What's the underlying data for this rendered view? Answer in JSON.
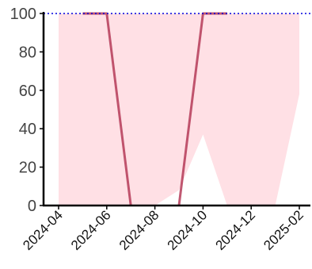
{
  "chart_data": {
    "type": "line",
    "title": "",
    "xlabel": "",
    "ylabel": "",
    "x": [
      "2024-04",
      "2024-05",
      "2024-06",
      "2024-07",
      "2024-08",
      "2024-09",
      "2024-10",
      "2024-11",
      "2024-12",
      "2025-01",
      "2025-02"
    ],
    "series": [
      {
        "values": [
          null,
          100,
          100,
          0,
          null,
          0,
          100,
          100,
          null,
          null,
          null
        ],
        "color": "#b0304f"
      }
    ],
    "band": {
      "upper": [
        100,
        100,
        100,
        100,
        100,
        100,
        100,
        100,
        100,
        100,
        100
      ],
      "lower": [
        0,
        0,
        0,
        0,
        0,
        8,
        37,
        0,
        0,
        0,
        58
      ],
      "color": "#ffe0e5"
    },
    "reference_line": {
      "y": 100,
      "color": "#0000dd",
      "style": "dotted"
    },
    "ylim": [
      0,
      100
    ],
    "yticks": [
      "0",
      "20",
      "40",
      "60",
      "80",
      "100"
    ],
    "xticks": [
      "2024-04",
      "2024-06",
      "2024-08",
      "2024-10",
      "2024-12",
      "2025-02"
    ],
    "grid": false,
    "legend": "none"
  }
}
